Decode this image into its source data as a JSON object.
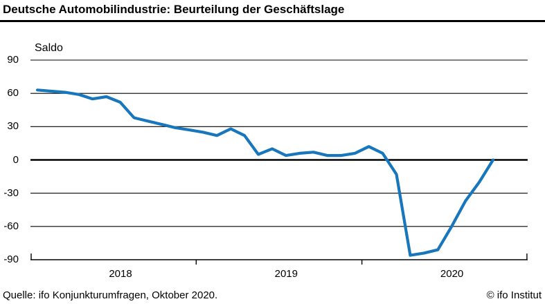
{
  "header": {
    "title": "Deutsche Automobilindustrie: Beurteilung der Geschäftslage"
  },
  "footer": {
    "source": "Quelle: ifo Konjunkturumfragen, Oktober 2020.",
    "copyright": "© ifo Institut"
  },
  "chart_data": {
    "type": "line",
    "title": "Deutsche Automobilindustrie: Beurteilung der Geschäftslage",
    "ylabel": "Saldo",
    "xlabel": "",
    "ylim": [
      -90,
      90
    ],
    "yticks": [
      90,
      60,
      30,
      0,
      -30,
      -60,
      -90
    ],
    "grid": "horizontal",
    "legend": "none",
    "zero_line_emphasized": true,
    "x_year_labels": [
      "2018",
      "2019",
      "2020"
    ],
    "line_color": "#1776bc",
    "x": [
      "Jan 2018",
      "Feb 2018",
      "Mär 2018",
      "Apr 2018",
      "Mai 2018",
      "Jun 2018",
      "Jul 2018",
      "Aug 2018",
      "Sep 2018",
      "Okt 2018",
      "Nov 2018",
      "Dez 2018",
      "Jan 2019",
      "Feb 2019",
      "Mär 2019",
      "Apr 2019",
      "Mai 2019",
      "Jun 2019",
      "Jul 2019",
      "Aug 2019",
      "Sep 2019",
      "Okt 2019",
      "Nov 2019",
      "Dez 2019",
      "Jan 2020",
      "Feb 2020",
      "Mär 2020",
      "Apr 2020",
      "Mai 2020",
      "Jun 2020",
      "Jul 2020",
      "Aug 2020",
      "Sep 2020",
      "Okt 2020"
    ],
    "series": [
      {
        "name": "Beurteilung der Geschäftslage (Saldo)",
        "values": [
          63,
          62,
          61,
          59,
          55,
          57,
          52,
          38,
          35,
          32,
          29,
          27,
          25,
          22,
          28,
          22,
          5,
          10,
          4,
          6,
          7,
          4,
          4,
          6,
          12,
          6,
          -13,
          -86,
          -84,
          -81,
          -60,
          -37,
          -20,
          0
        ]
      }
    ]
  }
}
